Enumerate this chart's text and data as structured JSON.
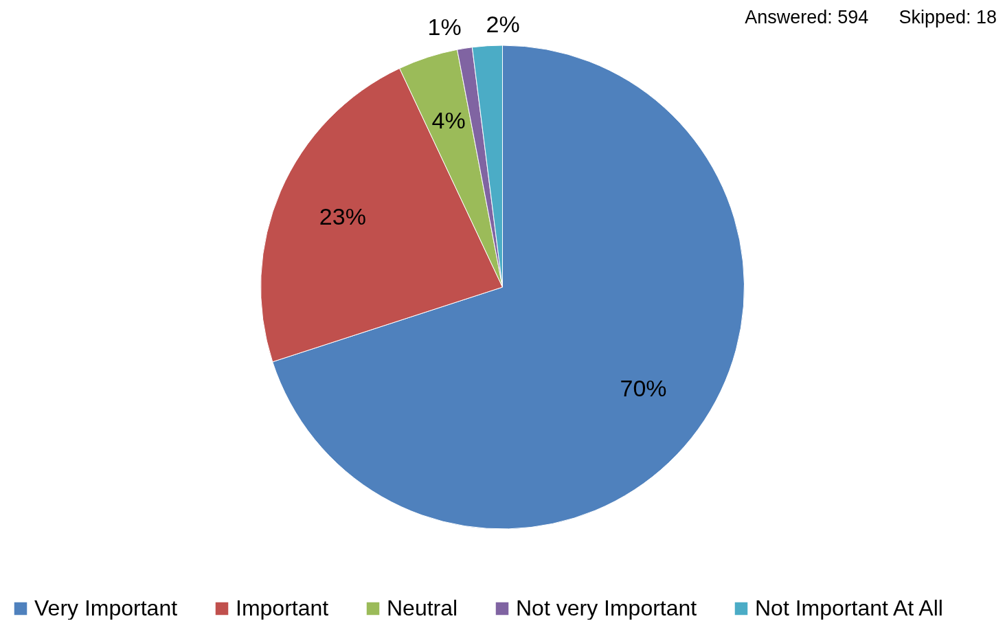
{
  "chart_data": {
    "type": "pie",
    "categories": [
      "Very Important",
      "Important",
      "Neutral",
      "Not very Important",
      "Not Important At All"
    ],
    "values": [
      70,
      23,
      4,
      1,
      2
    ],
    "value_labels": [
      "70%",
      "23%",
      "4%",
      "1%",
      "2%"
    ],
    "colors": [
      "#4f81bd",
      "#c0504d",
      "#9bbb59",
      "#8064a2",
      "#4bacc6"
    ],
    "legend": "bottom",
    "annotations": [
      "Answered: 594",
      "Skipped: 18"
    ]
  }
}
